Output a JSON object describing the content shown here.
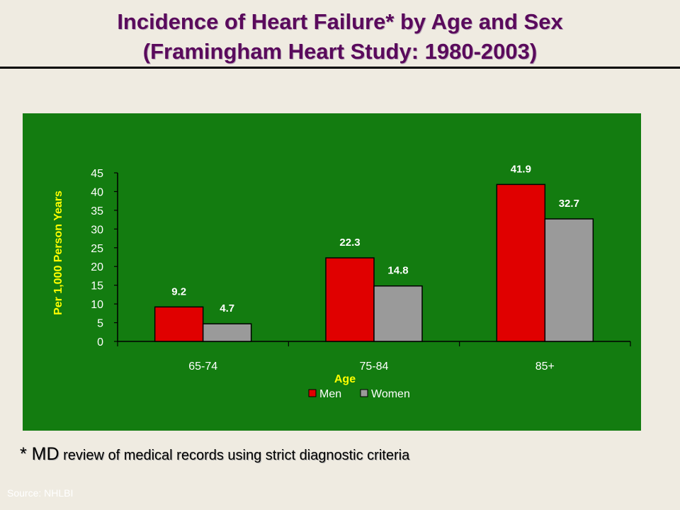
{
  "slide": {
    "title_line1": "Incidence of Heart Failure* by Age and Sex",
    "title_line2": "(Framingham Heart Study: 1980-2003)",
    "footnote_marker": "* MD",
    "footnote_text": " review of medical records using strict diagnostic criteria",
    "source": "Source: NHLBI"
  },
  "colors": {
    "panel_bg": "#137c10",
    "men": "#e00000",
    "women": "#9a9a9a",
    "ylabel": "#ffff00",
    "xlabel": "#ffff00",
    "title": "#5a0a5c"
  },
  "chart_data": {
    "type": "bar",
    "categories": [
      "65-74",
      "75-84",
      "85+"
    ],
    "series": [
      {
        "name": "Men",
        "values": [
          9.2,
          22.3,
          41.9
        ]
      },
      {
        "name": "Women",
        "values": [
          4.7,
          14.8,
          32.7
        ]
      }
    ],
    "data_labels": [
      [
        "9.2",
        "22.3",
        "41.9"
      ],
      [
        "4.7",
        "14.8",
        "32.7"
      ]
    ],
    "xlabel": "Age",
    "ylabel": "Per 1,000 Person Years",
    "ylim": [
      0,
      45
    ],
    "yticks": [
      "0",
      "5",
      "10",
      "15",
      "20",
      "25",
      "30",
      "35",
      "40",
      "45"
    ],
    "grid": false,
    "legend": "bottom-center"
  }
}
